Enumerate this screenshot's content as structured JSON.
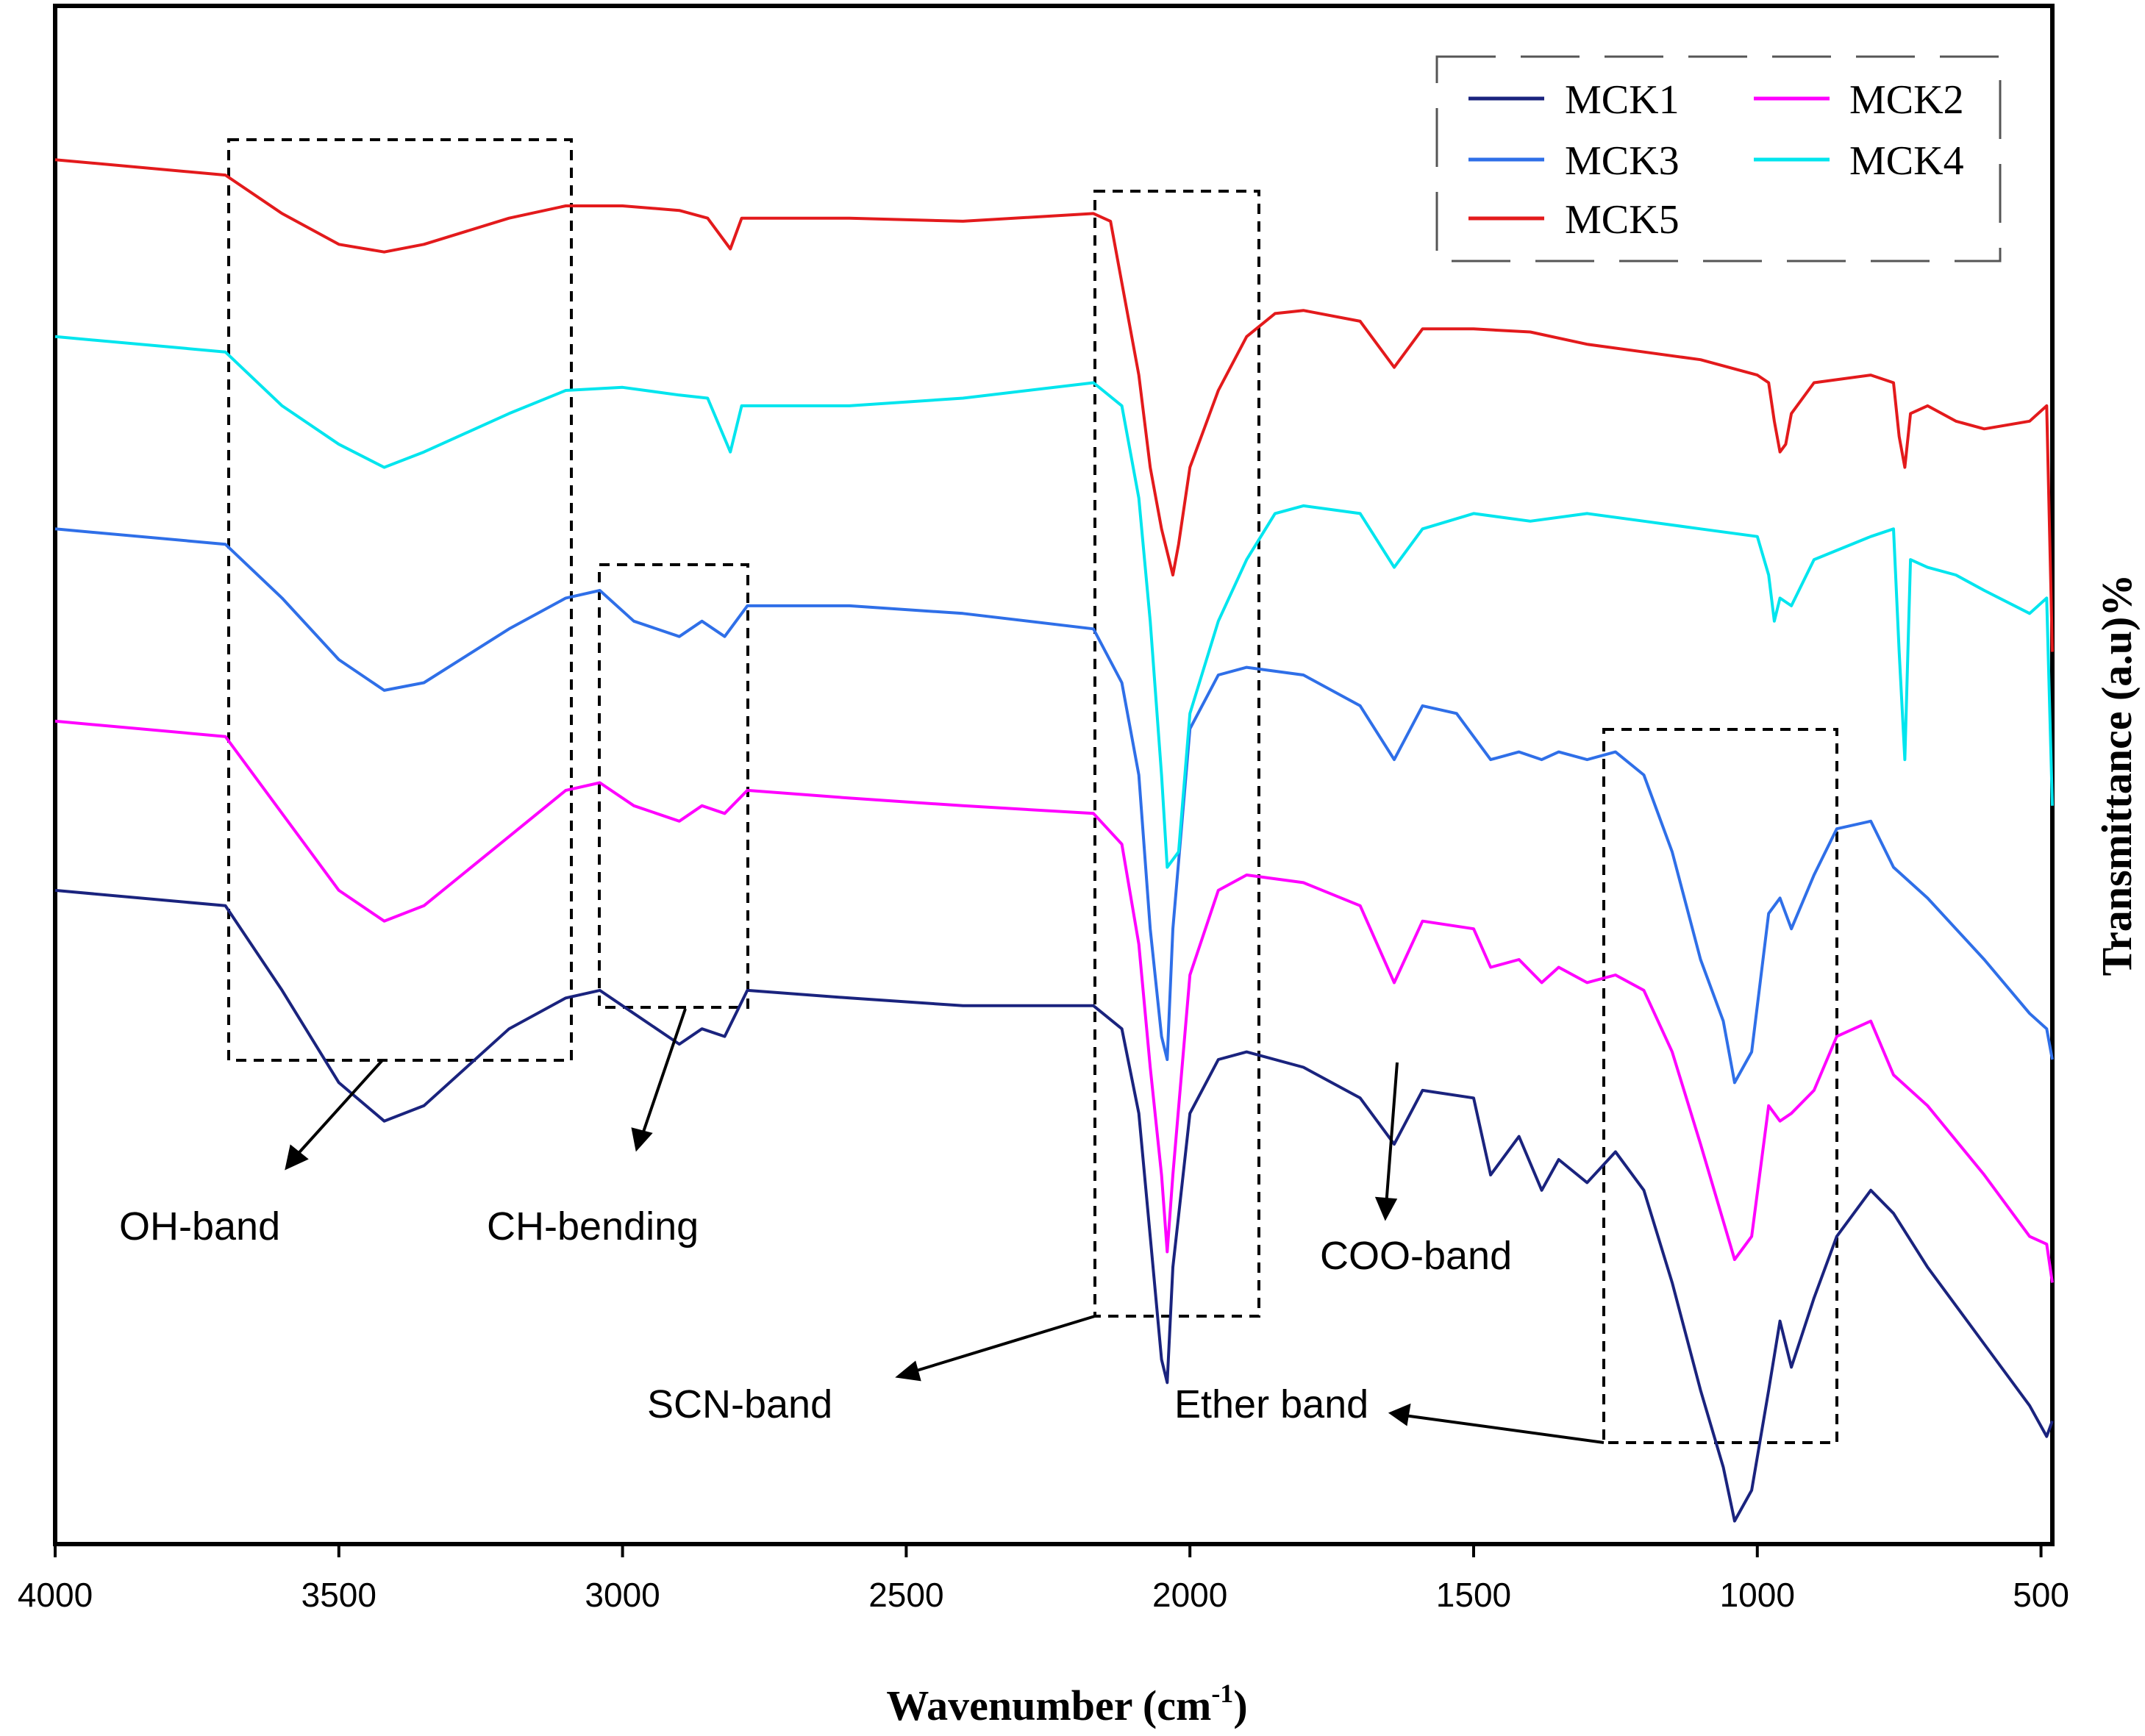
{
  "chart_data": {
    "type": "line",
    "xlabel": "Wavenumber (cm",
    "xlabel_sup": "-1",
    "xlabel_close": ")",
    "ylabel": "Transmittance (a.u)%",
    "xlim": [
      4000,
      480
    ],
    "x_ticks": [
      4000,
      3500,
      3000,
      2500,
      2000,
      1500,
      1000,
      500
    ],
    "x_tick_labels": [
      "4000",
      "3500",
      "3000",
      "2500",
      "2000",
      "1500",
      "1000",
      "500"
    ],
    "y_ticks": false,
    "grid": false,
    "legend_position": "top-right",
    "series": [
      {
        "name": "MCK1",
        "color": "#1a237e",
        "points": [
          [
            4000,
            0.575
          ],
          [
            3700,
            0.585
          ],
          [
            3600,
            0.64
          ],
          [
            3500,
            0.7
          ],
          [
            3420,
            0.725
          ],
          [
            3350,
            0.715
          ],
          [
            3200,
            0.665
          ],
          [
            3100,
            0.645
          ],
          [
            3040,
            0.64
          ],
          [
            2980,
            0.655
          ],
          [
            2900,
            0.675
          ],
          [
            2860,
            0.665
          ],
          [
            2820,
            0.67
          ],
          [
            2780,
            0.64
          ],
          [
            2600,
            0.645
          ],
          [
            2400,
            0.65
          ],
          [
            2170,
            0.65
          ],
          [
            2120,
            0.665
          ],
          [
            2090,
            0.72
          ],
          [
            2070,
            0.8
          ],
          [
            2050,
            0.88
          ],
          [
            2040,
            0.895
          ],
          [
            2030,
            0.82
          ],
          [
            2000,
            0.72
          ],
          [
            1950,
            0.685
          ],
          [
            1900,
            0.68
          ],
          [
            1800,
            0.69
          ],
          [
            1700,
            0.71
          ],
          [
            1640,
            0.74
          ],
          [
            1590,
            0.705
          ],
          [
            1500,
            0.71
          ],
          [
            1470,
            0.76
          ],
          [
            1420,
            0.735
          ],
          [
            1380,
            0.77
          ],
          [
            1350,
            0.75
          ],
          [
            1300,
            0.765
          ],
          [
            1250,
            0.745
          ],
          [
            1200,
            0.77
          ],
          [
            1150,
            0.83
          ],
          [
            1100,
            0.9
          ],
          [
            1060,
            0.95
          ],
          [
            1040,
            0.985
          ],
          [
            1010,
            0.965
          ],
          [
            980,
            0.9
          ],
          [
            960,
            0.855
          ],
          [
            940,
            0.885
          ],
          [
            900,
            0.84
          ],
          [
            860,
            0.8
          ],
          [
            800,
            0.77
          ],
          [
            760,
            0.785
          ],
          [
            700,
            0.82
          ],
          [
            600,
            0.87
          ],
          [
            520,
            0.91
          ],
          [
            490,
            0.93
          ],
          [
            480,
            0.92
          ]
        ]
      },
      {
        "name": "MCK2",
        "color": "#ff00ff",
        "points": [
          [
            4000,
            0.465
          ],
          [
            3700,
            0.475
          ],
          [
            3600,
            0.525
          ],
          [
            3500,
            0.575
          ],
          [
            3420,
            0.595
          ],
          [
            3350,
            0.585
          ],
          [
            3200,
            0.54
          ],
          [
            3100,
            0.51
          ],
          [
            3040,
            0.505
          ],
          [
            2980,
            0.52
          ],
          [
            2900,
            0.53
          ],
          [
            2860,
            0.52
          ],
          [
            2820,
            0.525
          ],
          [
            2780,
            0.51
          ],
          [
            2600,
            0.515
          ],
          [
            2400,
            0.52
          ],
          [
            2170,
            0.525
          ],
          [
            2120,
            0.545
          ],
          [
            2090,
            0.61
          ],
          [
            2070,
            0.69
          ],
          [
            2050,
            0.76
          ],
          [
            2040,
            0.81
          ],
          [
            2030,
            0.76
          ],
          [
            2000,
            0.63
          ],
          [
            1950,
            0.575
          ],
          [
            1900,
            0.565
          ],
          [
            1800,
            0.57
          ],
          [
            1700,
            0.585
          ],
          [
            1640,
            0.635
          ],
          [
            1590,
            0.595
          ],
          [
            1500,
            0.6
          ],
          [
            1470,
            0.625
          ],
          [
            1420,
            0.62
          ],
          [
            1380,
            0.635
          ],
          [
            1350,
            0.625
          ],
          [
            1300,
            0.635
          ],
          [
            1250,
            0.63
          ],
          [
            1200,
            0.64
          ],
          [
            1150,
            0.68
          ],
          [
            1100,
            0.74
          ],
          [
            1060,
            0.79
          ],
          [
            1040,
            0.815
          ],
          [
            1010,
            0.8
          ],
          [
            980,
            0.715
          ],
          [
            960,
            0.725
          ],
          [
            940,
            0.72
          ],
          [
            900,
            0.705
          ],
          [
            860,
            0.67
          ],
          [
            800,
            0.66
          ],
          [
            760,
            0.695
          ],
          [
            700,
            0.715
          ],
          [
            600,
            0.76
          ],
          [
            520,
            0.8
          ],
          [
            490,
            0.805
          ],
          [
            480,
            0.83
          ]
        ]
      },
      {
        "name": "MCK3",
        "color": "#2f6fe8",
        "points": [
          [
            4000,
            0.34
          ],
          [
            3700,
            0.35
          ],
          [
            3600,
            0.385
          ],
          [
            3500,
            0.425
          ],
          [
            3420,
            0.445
          ],
          [
            3350,
            0.44
          ],
          [
            3200,
            0.405
          ],
          [
            3100,
            0.385
          ],
          [
            3040,
            0.38
          ],
          [
            2980,
            0.4
          ],
          [
            2900,
            0.41
          ],
          [
            2860,
            0.4
          ],
          [
            2820,
            0.41
          ],
          [
            2780,
            0.39
          ],
          [
            2600,
            0.39
          ],
          [
            2400,
            0.395
          ],
          [
            2170,
            0.405
          ],
          [
            2120,
            0.44
          ],
          [
            2090,
            0.5
          ],
          [
            2070,
            0.6
          ],
          [
            2050,
            0.67
          ],
          [
            2040,
            0.685
          ],
          [
            2030,
            0.6
          ],
          [
            2000,
            0.47
          ],
          [
            1950,
            0.435
          ],
          [
            1900,
            0.43
          ],
          [
            1800,
            0.435
          ],
          [
            1700,
            0.455
          ],
          [
            1640,
            0.49
          ],
          [
            1590,
            0.455
          ],
          [
            1530,
            0.46
          ],
          [
            1470,
            0.49
          ],
          [
            1420,
            0.485
          ],
          [
            1380,
            0.49
          ],
          [
            1350,
            0.485
          ],
          [
            1300,
            0.49
          ],
          [
            1250,
            0.485
          ],
          [
            1200,
            0.5
          ],
          [
            1150,
            0.55
          ],
          [
            1100,
            0.62
          ],
          [
            1060,
            0.66
          ],
          [
            1040,
            0.7
          ],
          [
            1010,
            0.68
          ],
          [
            980,
            0.59
          ],
          [
            960,
            0.58
          ],
          [
            940,
            0.6
          ],
          [
            900,
            0.565
          ],
          [
            860,
            0.535
          ],
          [
            800,
            0.53
          ],
          [
            760,
            0.56
          ],
          [
            700,
            0.58
          ],
          [
            600,
            0.62
          ],
          [
            520,
            0.655
          ],
          [
            490,
            0.665
          ],
          [
            480,
            0.685
          ]
        ]
      },
      {
        "name": "MCK4",
        "color": "#00e5ee",
        "points": [
          [
            4000,
            0.215
          ],
          [
            3700,
            0.225
          ],
          [
            3600,
            0.26
          ],
          [
            3500,
            0.285
          ],
          [
            3420,
            0.3
          ],
          [
            3350,
            0.29
          ],
          [
            3200,
            0.265
          ],
          [
            3100,
            0.25
          ],
          [
            3000,
            0.248
          ],
          [
            2900,
            0.253
          ],
          [
            2850,
            0.255
          ],
          [
            2810,
            0.29
          ],
          [
            2790,
            0.26
          ],
          [
            2600,
            0.26
          ],
          [
            2400,
            0.255
          ],
          [
            2170,
            0.245
          ],
          [
            2120,
            0.26
          ],
          [
            2090,
            0.32
          ],
          [
            2070,
            0.4
          ],
          [
            2050,
            0.5
          ],
          [
            2040,
            0.56
          ],
          [
            2020,
            0.55
          ],
          [
            2000,
            0.46
          ],
          [
            1950,
            0.4
          ],
          [
            1900,
            0.36
          ],
          [
            1850,
            0.33
          ],
          [
            1800,
            0.325
          ],
          [
            1700,
            0.33
          ],
          [
            1640,
            0.365
          ],
          [
            1590,
            0.34
          ],
          [
            1500,
            0.33
          ],
          [
            1400,
            0.335
          ],
          [
            1300,
            0.33
          ],
          [
            1200,
            0.335
          ],
          [
            1100,
            0.34
          ],
          [
            1000,
            0.345
          ],
          [
            980,
            0.37
          ],
          [
            970,
            0.4
          ],
          [
            960,
            0.385
          ],
          [
            940,
            0.39
          ],
          [
            900,
            0.36
          ],
          [
            800,
            0.345
          ],
          [
            760,
            0.34
          ],
          [
            750,
            0.42
          ],
          [
            740,
            0.49
          ],
          [
            730,
            0.36
          ],
          [
            700,
            0.365
          ],
          [
            650,
            0.37
          ],
          [
            600,
            0.38
          ],
          [
            520,
            0.395
          ],
          [
            490,
            0.385
          ],
          [
            480,
            0.52
          ]
        ]
      },
      {
        "name": "MCK5",
        "color": "#e31a1c",
        "points": [
          [
            4000,
            0.1
          ],
          [
            3700,
            0.11
          ],
          [
            3600,
            0.135
          ],
          [
            3500,
            0.155
          ],
          [
            3420,
            0.16
          ],
          [
            3350,
            0.155
          ],
          [
            3200,
            0.138
          ],
          [
            3100,
            0.13
          ],
          [
            3000,
            0.13
          ],
          [
            2900,
            0.133
          ],
          [
            2850,
            0.138
          ],
          [
            2810,
            0.158
          ],
          [
            2790,
            0.138
          ],
          [
            2600,
            0.138
          ],
          [
            2400,
            0.14
          ],
          [
            2170,
            0.135
          ],
          [
            2140,
            0.14
          ],
          [
            2120,
            0.18
          ],
          [
            2090,
            0.24
          ],
          [
            2070,
            0.3
          ],
          [
            2050,
            0.34
          ],
          [
            2030,
            0.37
          ],
          [
            2020,
            0.35
          ],
          [
            2000,
            0.3
          ],
          [
            1950,
            0.25
          ],
          [
            1900,
            0.215
          ],
          [
            1850,
            0.2
          ],
          [
            1800,
            0.198
          ],
          [
            1700,
            0.205
          ],
          [
            1640,
            0.235
          ],
          [
            1590,
            0.21
          ],
          [
            1500,
            0.21
          ],
          [
            1400,
            0.212
          ],
          [
            1300,
            0.22
          ],
          [
            1200,
            0.225
          ],
          [
            1100,
            0.23
          ],
          [
            1000,
            0.24
          ],
          [
            980,
            0.245
          ],
          [
            970,
            0.27
          ],
          [
            960,
            0.29
          ],
          [
            950,
            0.285
          ],
          [
            940,
            0.265
          ],
          [
            900,
            0.245
          ],
          [
            800,
            0.24
          ],
          [
            760,
            0.245
          ],
          [
            750,
            0.28
          ],
          [
            740,
            0.3
          ],
          [
            730,
            0.265
          ],
          [
            700,
            0.26
          ],
          [
            650,
            0.27
          ],
          [
            600,
            0.275
          ],
          [
            520,
            0.27
          ],
          [
            490,
            0.26
          ],
          [
            480,
            0.42
          ]
        ]
      }
    ],
    "annotations": [
      {
        "label": "OH-band",
        "x_range": [
          3700,
          3100
        ]
      },
      {
        "label": "CH-bending",
        "x_range": [
          3040,
          2780
        ]
      },
      {
        "label": "SCN-band",
        "x_range": [
          2170,
          1880
        ]
      },
      {
        "label": "COO-band",
        "x_at": 1640
      },
      {
        "label": "Ether band",
        "x_range": [
          1280,
          870
        ]
      }
    ]
  }
}
